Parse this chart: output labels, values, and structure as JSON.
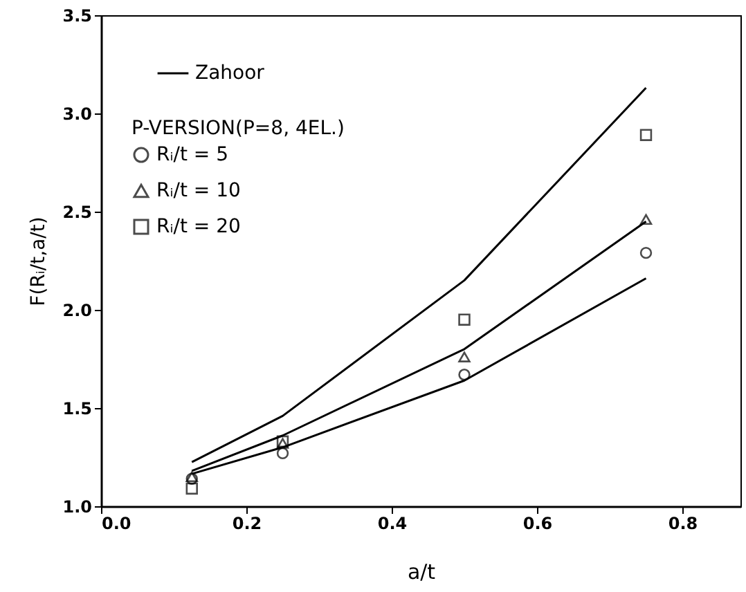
{
  "chart_data": {
    "type": "line",
    "xlabel": "a/t",
    "ylabel": "F(Rᵢ/t,a/t)",
    "legend_title": "P-VERSION(P=8, 4EL.)",
    "legend": "top left",
    "xlim": [
      0,
      0.88
    ],
    "ylim": [
      1.0,
      3.5
    ],
    "xticks": [
      {
        "value": 0,
        "label": "0.0"
      },
      0.2,
      0.4,
      0.6,
      0.8
    ],
    "yticks": [
      {
        "value": 1,
        "label": "1.0"
      },
      1.5,
      {
        "value": 2,
        "label": "2.0"
      },
      2.5,
      {
        "value": 3,
        "label": "3.0"
      },
      3.5
    ],
    "grid": false,
    "series": [
      {
        "name": "Zahoor",
        "color": "#000000",
        "line_style": "solid",
        "marker": "none",
        "x": [
          0.125,
          0.25,
          0.5,
          0.75
        ],
        "values": [
          1.165,
          1.3,
          1.64,
          2.16
        ]
      },
      {
        "color": "#000000",
        "line_style": "solid",
        "marker": "none",
        "x": [
          0.125,
          0.25,
          0.5,
          0.75
        ],
        "values": [
          1.18,
          1.36,
          1.8,
          2.45
        ]
      },
      {
        "color": "#000000",
        "line_style": "solid",
        "marker": "none",
        "x": [
          0.125,
          0.25,
          0.5,
          0.75
        ],
        "values": [
          1.225,
          1.46,
          2.15,
          3.13
        ]
      },
      {
        "name": "Rᵢ/t = 5",
        "type": "scatter",
        "color": "#000000",
        "marker": "circle",
        "x": [
          0.125,
          0.25,
          0.5,
          0.75
        ],
        "values": [
          1.14,
          1.27,
          1.67,
          2.29
        ]
      },
      {
        "name": "Rᵢ/t = 10",
        "type": "scatter",
        "color": "#000000",
        "marker": "triangle",
        "x": [
          0.125,
          0.25,
          0.5,
          0.75
        ],
        "values": [
          1.15,
          1.32,
          1.76,
          2.46
        ]
      },
      {
        "name": "Rᵢ/t = 20",
        "type": "scatter",
        "color": "#000000",
        "marker": "square",
        "x": [
          0.125,
          0.25,
          0.5,
          0.75
        ],
        "values": [
          1.09,
          1.33,
          1.95,
          2.89
        ]
      }
    ]
  }
}
